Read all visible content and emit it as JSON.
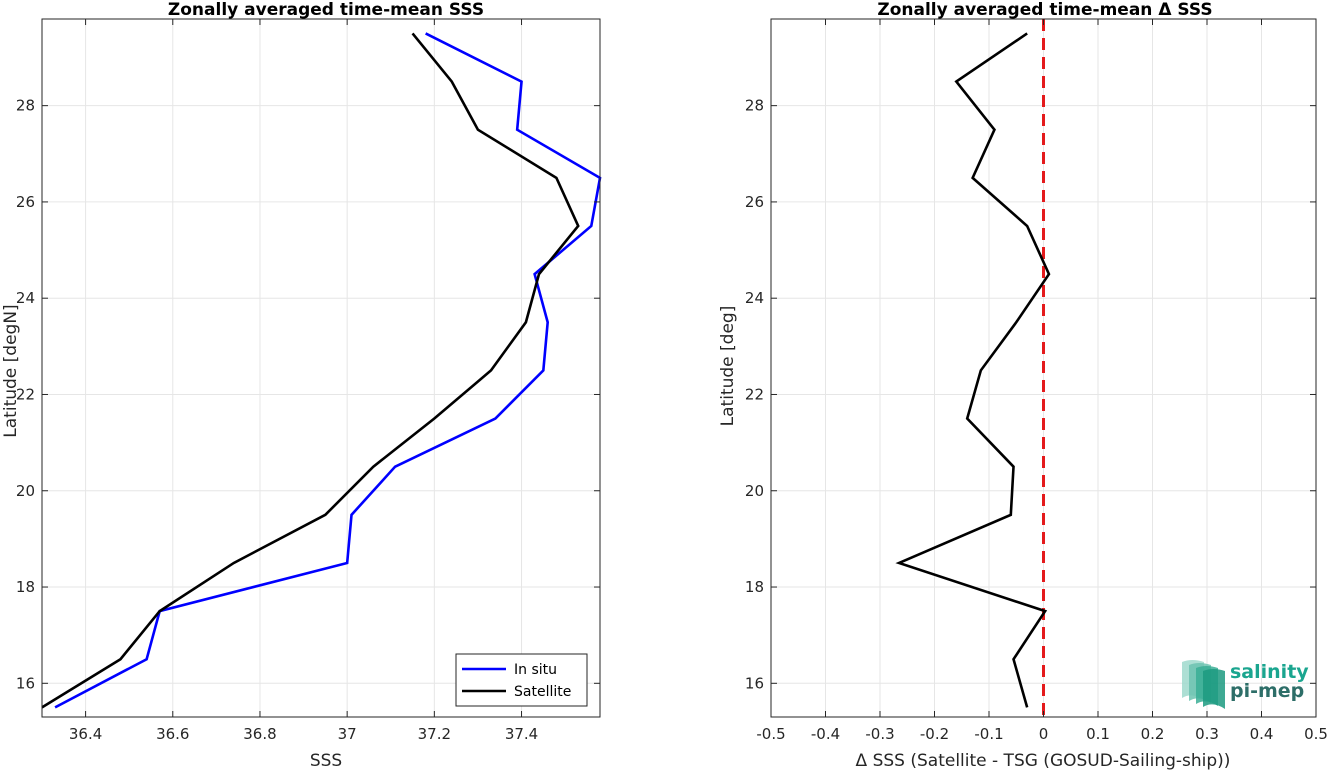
{
  "colors": {
    "in_situ": "#0000ff",
    "satellite": "#000000",
    "zero_line": "#e41a1c",
    "grid": "#e6e6e6",
    "axis": "#262626",
    "logo_primary": "#1aa58f",
    "logo_secondary": "#2d6e68"
  },
  "logo": {
    "line1": "salinity",
    "line2": "pi-mep",
    "icon": "layered-ocean-waves-icon"
  },
  "chart_data": [
    {
      "type": "line",
      "title": "Zonally averaged time-mean SSS",
      "xlabel": "SSS",
      "ylabel": "Latitude [degN]",
      "xlim": [
        36.3,
        37.58
      ],
      "ylim": [
        15.3,
        29.8
      ],
      "x_ticks": [
        36.4,
        36.6,
        36.8,
        37,
        37.2,
        37.4
      ],
      "x_tick_labels": [
        "36.4",
        "36.6",
        "36.8",
        "37",
        "37.2",
        "37.4"
      ],
      "y_ticks": [
        16,
        18,
        20,
        22,
        24,
        26,
        28
      ],
      "y_tick_labels": [
        "16",
        "18",
        "20",
        "22",
        "24",
        "26",
        "28"
      ],
      "grid": true,
      "legend_position": "bottom-right",
      "series": [
        {
          "name": "In situ",
          "color": "#0000ff",
          "points": [
            [
              36.33,
              15.5
            ],
            [
              36.54,
              16.5
            ],
            [
              36.57,
              17.5
            ],
            [
              37.0,
              18.5
            ],
            [
              37.01,
              19.5
            ],
            [
              37.11,
              20.5
            ],
            [
              37.34,
              21.5
            ],
            [
              37.45,
              22.5
            ],
            [
              37.46,
              23.5
            ],
            [
              37.43,
              24.5
            ],
            [
              37.56,
              25.5
            ],
            [
              37.58,
              26.5
            ],
            [
              37.39,
              27.5
            ],
            [
              37.4,
              28.5
            ],
            [
              37.18,
              29.5
            ]
          ]
        },
        {
          "name": "Satellite",
          "color": "#000000",
          "points": [
            [
              36.3,
              15.5
            ],
            [
              36.48,
              16.5
            ],
            [
              36.57,
              17.5
            ],
            [
              36.74,
              18.5
            ],
            [
              36.95,
              19.5
            ],
            [
              37.06,
              20.5
            ],
            [
              37.2,
              21.5
            ],
            [
              37.33,
              22.5
            ],
            [
              37.41,
              23.5
            ],
            [
              37.44,
              24.5
            ],
            [
              37.53,
              25.5
            ],
            [
              37.48,
              26.5
            ],
            [
              37.3,
              27.5
            ],
            [
              37.24,
              28.5
            ],
            [
              37.15,
              29.5
            ]
          ]
        }
      ]
    },
    {
      "type": "line",
      "title": "Zonally averaged time-mean Δ SSS",
      "xlabel": "Δ SSS (Satellite - TSG (GOSUD-Sailing-ship))",
      "ylabel": "Latitude [deg]",
      "xlim": [
        -0.5,
        0.5
      ],
      "ylim": [
        15.3,
        29.8
      ],
      "x_ticks": [
        -0.5,
        -0.4,
        -0.3,
        -0.2,
        -0.1,
        0,
        0.1,
        0.2,
        0.3,
        0.4,
        0.5
      ],
      "x_tick_labels": [
        "-0.5",
        "-0.4",
        "-0.3",
        "-0.2",
        "-0.1",
        "0",
        "0.1",
        "0.2",
        "0.3",
        "0.4",
        "0.5"
      ],
      "y_ticks": [
        16,
        18,
        20,
        22,
        24,
        26,
        28
      ],
      "y_tick_labels": [
        "16",
        "18",
        "20",
        "22",
        "24",
        "26",
        "28"
      ],
      "grid": true,
      "reference_line": {
        "x": 0,
        "style": "dashed",
        "color": "#e41a1c"
      },
      "series": [
        {
          "color": "#000000",
          "points": [
            [
              -0.03,
              15.5
            ],
            [
              -0.055,
              16.5
            ],
            [
              0.003,
              17.5
            ],
            [
              -0.265,
              18.5
            ],
            [
              -0.06,
              19.5
            ],
            [
              -0.055,
              20.5
            ],
            [
              -0.14,
              21.5
            ],
            [
              -0.115,
              22.5
            ],
            [
              -0.05,
              23.5
            ],
            [
              0.01,
              24.5
            ],
            [
              -0.03,
              25.5
            ],
            [
              -0.13,
              26.5
            ],
            [
              -0.09,
              27.5
            ],
            [
              -0.16,
              28.5
            ],
            [
              -0.03,
              29.5
            ]
          ]
        }
      ]
    }
  ]
}
